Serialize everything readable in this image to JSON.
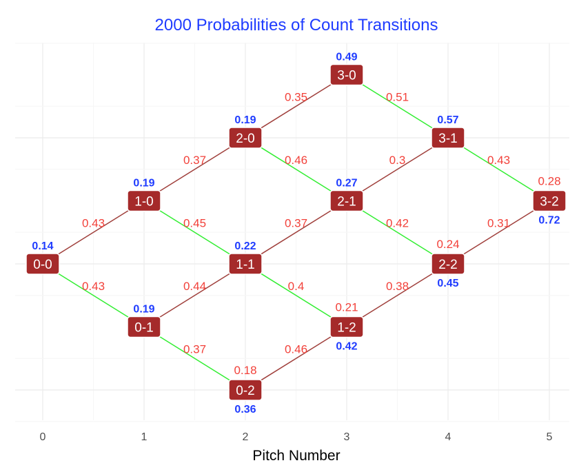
{
  "title": "2000 Probabilities of Count Transitions",
  "xlabel": "Pitch Number",
  "colors": {
    "title": "#1f3cff",
    "node_fill": "#a52a2a",
    "node_text": "#ffffff",
    "edge_ball": "#a0403c",
    "edge_strike": "#33ee33",
    "edge_label": "#f2413a",
    "prob_label": "#1f3cff",
    "grid_major": "#ebebeb",
    "grid_minor": "#f6f6f6",
    "tick_text": "#4d4d4d"
  },
  "chart_data": {
    "type": "diagram",
    "x_ticks": [
      0,
      1,
      2,
      3,
      4,
      5
    ],
    "xlim": [
      0,
      5
    ],
    "nodes": [
      {
        "id": "0-0",
        "label": "0-0",
        "x": 0,
        "y": 0,
        "prob": "0.14",
        "prob_pos": "above"
      },
      {
        "id": "1-0",
        "label": "1-0",
        "x": 1,
        "y": 1,
        "prob": "0.19",
        "prob_pos": "above"
      },
      {
        "id": "0-1",
        "label": "0-1",
        "x": 1,
        "y": -1,
        "prob": "0.19",
        "prob_pos": "above"
      },
      {
        "id": "2-0",
        "label": "2-0",
        "x": 2,
        "y": 2,
        "prob": "0.19",
        "prob_pos": "above"
      },
      {
        "id": "1-1",
        "label": "1-1",
        "x": 2,
        "y": 0,
        "prob": "0.22",
        "prob_pos": "above"
      },
      {
        "id": "0-2",
        "label": "0-2",
        "x": 2,
        "y": -2,
        "prob": "0.36",
        "prob_pos": "below"
      },
      {
        "id": "3-0",
        "label": "3-0",
        "x": 3,
        "y": 3,
        "prob": "0.49",
        "prob_pos": "above"
      },
      {
        "id": "2-1",
        "label": "2-1",
        "x": 3,
        "y": 1,
        "prob": "0.27",
        "prob_pos": "above"
      },
      {
        "id": "1-2",
        "label": "1-2",
        "x": 3,
        "y": -1,
        "prob": "0.42",
        "prob_pos": "below"
      },
      {
        "id": "3-1",
        "label": "3-1",
        "x": 4,
        "y": 2,
        "prob": "0.57",
        "prob_pos": "above"
      },
      {
        "id": "2-2",
        "label": "2-2",
        "x": 4,
        "y": 0,
        "prob": "0.45",
        "prob_pos": "below"
      },
      {
        "id": "3-2",
        "label": "3-2",
        "x": 5,
        "y": 1,
        "prob": "0.72",
        "prob_pos": "below"
      }
    ],
    "edges": [
      {
        "from": "0-0",
        "to": "1-0",
        "kind": "ball",
        "label": "0.43",
        "label_pos": "mid-above"
      },
      {
        "from": "0-0",
        "to": "0-1",
        "kind": "strike",
        "label": "0.43",
        "label_pos": "mid-above"
      },
      {
        "from": "1-0",
        "to": "2-0",
        "kind": "ball",
        "label": "0.37",
        "label_pos": "mid-above"
      },
      {
        "from": "1-0",
        "to": "1-1",
        "kind": "strike",
        "label": "0.45",
        "label_pos": "mid-above"
      },
      {
        "from": "0-1",
        "to": "1-1",
        "kind": "ball",
        "label": "0.44",
        "label_pos": "mid-above"
      },
      {
        "from": "0-1",
        "to": "0-2",
        "kind": "strike",
        "label": "0.37",
        "label_pos": "mid-above"
      },
      {
        "from": "2-0",
        "to": "3-0",
        "kind": "ball",
        "label": "0.35",
        "label_pos": "mid-above"
      },
      {
        "from": "2-0",
        "to": "2-1",
        "kind": "strike",
        "label": "0.46",
        "label_pos": "mid-above"
      },
      {
        "from": "1-1",
        "to": "2-1",
        "kind": "ball",
        "label": "0.37",
        "label_pos": "mid-above"
      },
      {
        "from": "1-1",
        "to": "1-2",
        "kind": "strike",
        "label": "0.4",
        "label_pos": "mid-above"
      },
      {
        "from": "0-2",
        "to": "1-2",
        "kind": "ball",
        "label": "0.46",
        "label_pos": "mid-above"
      },
      {
        "from": "0-2",
        "to": "0-2",
        "kind": "self",
        "label": "0.18",
        "label_pos": "node-above"
      },
      {
        "from": "3-0",
        "to": "3-1",
        "kind": "strike",
        "label": "0.51",
        "label_pos": "mid-above"
      },
      {
        "from": "2-1",
        "to": "3-1",
        "kind": "ball",
        "label": "0.3",
        "label_pos": "mid-above"
      },
      {
        "from": "2-1",
        "to": "2-2",
        "kind": "strike",
        "label": "0.42",
        "label_pos": "mid-above"
      },
      {
        "from": "1-2",
        "to": "2-2",
        "kind": "ball",
        "label": "0.38",
        "label_pos": "mid-above"
      },
      {
        "from": "1-2",
        "to": "1-2",
        "kind": "self",
        "label": "0.21",
        "label_pos": "node-above"
      },
      {
        "from": "3-1",
        "to": "3-2",
        "kind": "strike",
        "label": "0.43",
        "label_pos": "mid-above"
      },
      {
        "from": "2-2",
        "to": "3-2",
        "kind": "ball",
        "label": "0.31",
        "label_pos": "mid-above"
      },
      {
        "from": "2-2",
        "to": "2-2",
        "kind": "self",
        "label": "0.24",
        "label_pos": "node-above"
      },
      {
        "from": "3-2",
        "to": "3-2",
        "kind": "self",
        "label": "0.28",
        "label_pos": "node-above"
      }
    ]
  }
}
